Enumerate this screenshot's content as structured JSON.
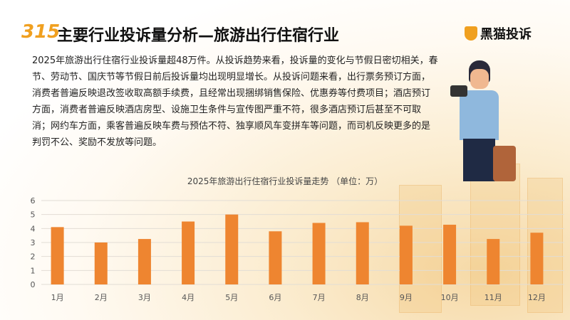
{
  "header": {
    "title": "主要行业投诉量分析—旅游出行住宿行业",
    "brand": "黑猫投诉"
  },
  "paragraph": "2025年旅游出行住宿行业投诉量超48万件。从投诉趋势来看，投诉量的变化与节假日密切相关，春节、劳动节、国庆节等节假日前后投诉量均出现明显增长。从投诉问题来看，出行票务预订方面，消费者普遍反映退改签收取高额手续费，且经常出现捆绑销售保险、优惠券等付费项目；酒店预订方面，消费者普遍反映酒店房型、设施卫生条件与宣传图严重不符，很多酒店预订后甚至不可取消；网约车方面，乘客普遍反映车费与预估不符、独享顺风车变拼车等问题，而司机反映更多的是判罚不公、奖励不发放等问题。",
  "chart_data": {
    "type": "bar",
    "title": "2025年旅游出行住宿行业投诉量走势 （单位：万）",
    "categories": [
      "1月",
      "2月",
      "3月",
      "4月",
      "5月",
      "6月",
      "7月",
      "8月",
      "9月",
      "10月",
      "11月",
      "12月"
    ],
    "values": [
      4.1,
      3.0,
      3.25,
      4.5,
      5.0,
      3.8,
      4.4,
      4.45,
      4.2,
      4.27,
      3.25,
      3.7
    ],
    "ylim": [
      0,
      6
    ],
    "yticks": [
      0,
      1,
      2,
      3,
      4,
      5,
      6
    ],
    "grid": true,
    "bar_color": "#ee8530"
  }
}
